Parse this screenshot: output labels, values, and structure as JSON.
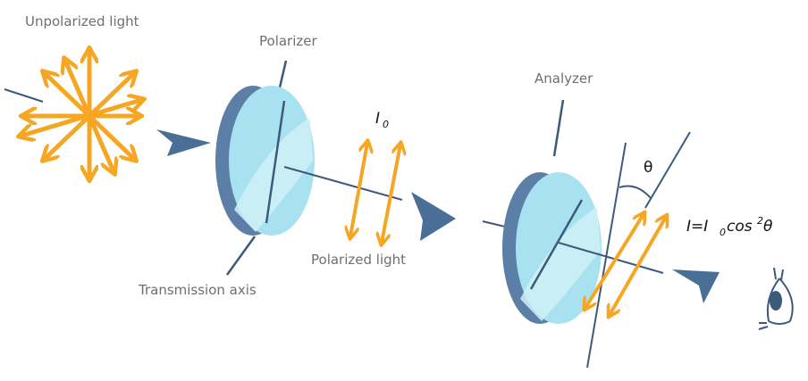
{
  "labels": {
    "unpolarized": "Unpolarized light",
    "polarizer": "Polarizer",
    "i0": "0",
    "i0_letter": "I",
    "polarized": "Polarized light",
    "transmission": "Transmission axis",
    "analyzer": "Analyzer",
    "theta": "θ",
    "formula_I": "I=I",
    "formula_sub": "0",
    "formula_cos": "cos",
    "formula_sup": "2",
    "formula_theta": "θ"
  },
  "colors": {
    "orange": "#f5a623",
    "blue_arrow": "#4a6f96",
    "lens_fill": "#a8e2f0",
    "lens_rim": "#5b7fa6",
    "line": "#3d5a7a",
    "label": "#6f6f6f"
  }
}
